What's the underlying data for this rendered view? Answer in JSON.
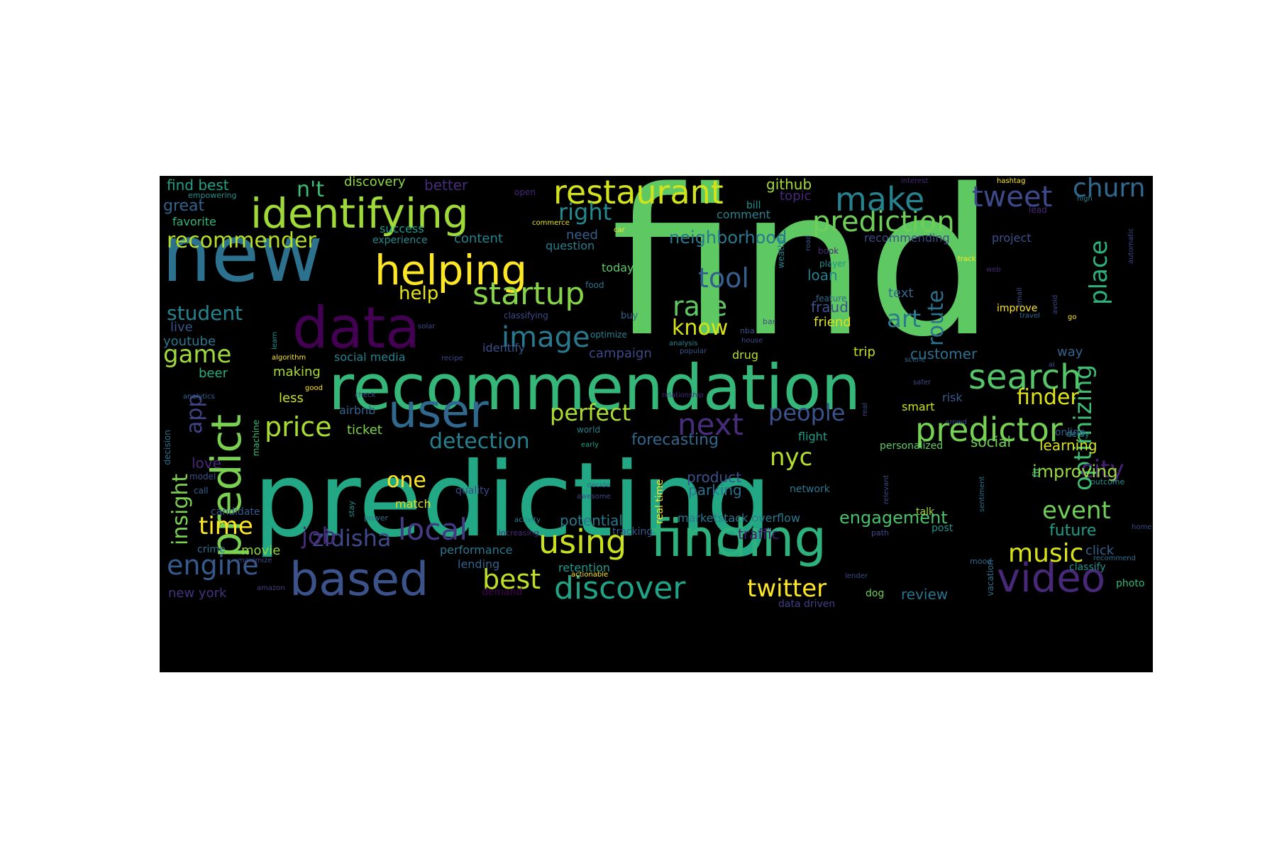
{
  "wordcloud": {
    "background": "#000000",
    "colormap": "viridis",
    "words": [
      {
        "text": "find",
        "color": "#5ec962"
      },
      {
        "text": "predicting",
        "color": "#22a884"
      },
      {
        "text": "new",
        "color": "#2c728e"
      },
      {
        "text": "recommendation",
        "color": "#35b779"
      },
      {
        "text": "data",
        "color": "#440154"
      },
      {
        "text": "finding",
        "color": "#2db27d"
      },
      {
        "text": "identifying",
        "color": "#a0da39"
      },
      {
        "text": "helping",
        "color": "#fde725"
      },
      {
        "text": "user",
        "color": "#31688e"
      },
      {
        "text": "based",
        "color": "#3b528b"
      },
      {
        "text": "predict",
        "color": "#7ad151"
      },
      {
        "text": "video",
        "color": "#482878"
      },
      {
        "text": "restaurant",
        "color": "#d2e21b"
      },
      {
        "text": "prediction",
        "color": "#6ece58"
      },
      {
        "text": "startup",
        "color": "#86d549"
      },
      {
        "text": "search",
        "color": "#54c568"
      },
      {
        "text": "predictor",
        "color": "#75d054"
      },
      {
        "text": "make",
        "color": "#26828e"
      },
      {
        "text": "tweet",
        "color": "#3e4989"
      },
      {
        "text": "discover",
        "color": "#20a386"
      },
      {
        "text": "recommender",
        "color": "#b5de2b"
      },
      {
        "text": "next",
        "color": "#472d7b"
      },
      {
        "text": "image",
        "color": "#2a788e"
      },
      {
        "text": "local",
        "color": "#443983"
      },
      {
        "text": "using",
        "color": "#cae11f"
      },
      {
        "text": "churn",
        "color": "#31688e"
      },
      {
        "text": "price",
        "color": "#a8db34"
      },
      {
        "text": "tool",
        "color": "#355f8d"
      },
      {
        "text": "rate",
        "color": "#5ec962"
      },
      {
        "text": "place",
        "color": "#2db27d"
      },
      {
        "text": "engine",
        "color": "#375a8c"
      },
      {
        "text": "music",
        "color": "#d8e219"
      },
      {
        "text": "twitter",
        "color": "#fde725"
      },
      {
        "text": "best",
        "color": "#bddf26"
      },
      {
        "text": "optimizing",
        "color": "#3fbc73"
      },
      {
        "text": "perfect",
        "color": "#addc30"
      },
      {
        "text": "zidisha",
        "color": "#3e4989"
      },
      {
        "text": "event",
        "color": "#6ece58"
      },
      {
        "text": "art",
        "color": "#287c8e"
      },
      {
        "text": "know",
        "color": "#d8e219"
      },
      {
        "text": "detection",
        "color": "#27808e"
      },
      {
        "text": "route",
        "color": "#2c728e"
      },
      {
        "text": "game",
        "color": "#9fda3a"
      },
      {
        "text": "people",
        "color": "#3b528b"
      },
      {
        "text": "city",
        "color": "#482173"
      },
      {
        "text": "time",
        "color": "#fde725"
      },
      {
        "text": "nyc",
        "color": "#b5de2b"
      },
      {
        "text": "right",
        "color": "#23898e"
      },
      {
        "text": "n't",
        "color": "#3bbb75"
      },
      {
        "text": "student",
        "color": "#25858e"
      },
      {
        "text": "job",
        "color": "#472c7a"
      },
      {
        "text": "insight",
        "color": "#7ad151"
      },
      {
        "text": "finder",
        "color": "#dde318"
      },
      {
        "text": "one",
        "color": "#fde725"
      },
      {
        "text": "help",
        "color": "#e5e419"
      },
      {
        "text": "app",
        "color": "#414487"
      },
      {
        "text": "neighborhood",
        "color": "#2a788e"
      },
      {
        "text": "improving",
        "color": "#9bd93c"
      },
      {
        "text": "engagement",
        "color": "#4ac16d"
      },
      {
        "text": "forecasting",
        "color": "#31688e"
      },
      {
        "text": "future",
        "color": "#1f9e89"
      },
      {
        "text": "great",
        "color": "#33638d"
      },
      {
        "text": "find best",
        "color": "#1fa187"
      },
      {
        "text": "github",
        "color": "#a5db36"
      },
      {
        "text": "discovery",
        "color": "#8bd646"
      },
      {
        "text": "better",
        "color": "#472d7b"
      },
      {
        "text": "learning",
        "color": "#d5e21a"
      },
      {
        "text": "customer",
        "color": "#2d708e"
      },
      {
        "text": "social",
        "color": "#6ece58"
      },
      {
        "text": "product",
        "color": "#3b528b"
      },
      {
        "text": "parking",
        "color": "#2c728e"
      },
      {
        "text": "potential",
        "color": "#2a788e"
      },
      {
        "text": "traffic",
        "color": "#481f70"
      },
      {
        "text": "movie",
        "color": "#8bd646"
      },
      {
        "text": "review",
        "color": "#2c728e"
      },
      {
        "text": "loan",
        "color": "#277f8e"
      },
      {
        "text": "fraud",
        "color": "#3b528b"
      },
      {
        "text": "friend",
        "color": "#dde318"
      },
      {
        "text": "text",
        "color": "#31688e"
      },
      {
        "text": "topic",
        "color": "#482878"
      },
      {
        "text": "comment",
        "color": "#26828e"
      },
      {
        "text": "bill",
        "color": "#21918c"
      },
      {
        "text": "project",
        "color": "#3b528b"
      },
      {
        "text": "recommending",
        "color": "#3e4989"
      },
      {
        "text": "content",
        "color": "#25848e"
      },
      {
        "text": "need",
        "color": "#355f8d"
      },
      {
        "text": "question",
        "color": "#287d8e"
      },
      {
        "text": "today",
        "color": "#5ec962"
      },
      {
        "text": "favorite",
        "color": "#35b779"
      },
      {
        "text": "success",
        "color": "#1f9a8a"
      },
      {
        "text": "experience",
        "color": "#23898e"
      },
      {
        "text": "youtube",
        "color": "#2a788e"
      },
      {
        "text": "live",
        "color": "#39568c"
      },
      {
        "text": "beer",
        "color": "#29af7f"
      },
      {
        "text": "making",
        "color": "#a8db34"
      },
      {
        "text": "social media",
        "color": "#26828e"
      },
      {
        "text": "identify",
        "color": "#3b528b"
      },
      {
        "text": "campaign",
        "color": "#3e4989"
      },
      {
        "text": "drug",
        "color": "#b8de29"
      },
      {
        "text": "trip",
        "color": "#c2df23"
      },
      {
        "text": "way",
        "color": "#33638d"
      },
      {
        "text": "airbnb",
        "color": "#33638d"
      },
      {
        "text": "less",
        "color": "#c8e020"
      },
      {
        "text": "smart",
        "color": "#cde11d"
      },
      {
        "text": "risk",
        "color": "#38598c"
      },
      {
        "text": "ticket",
        "color": "#7fd34e"
      },
      {
        "text": "flight",
        "color": "#1f9e89"
      },
      {
        "text": "love",
        "color": "#482878"
      },
      {
        "text": "match",
        "color": "#dde318"
      },
      {
        "text": "performance",
        "color": "#2a788e"
      },
      {
        "text": "retention",
        "color": "#1f9a8a"
      },
      {
        "text": "lending",
        "color": "#33638d"
      },
      {
        "text": "demand",
        "color": "#440154"
      },
      {
        "text": "candidate",
        "color": "#38598c"
      },
      {
        "text": "crime",
        "color": "#2d708e"
      },
      {
        "text": "new york",
        "color": "#46327e"
      },
      {
        "text": "click",
        "color": "#33638d"
      },
      {
        "text": "classify",
        "color": "#21918c"
      },
      {
        "text": "photo",
        "color": "#35b779"
      },
      {
        "text": "post",
        "color": "#21918c"
      },
      {
        "text": "talk",
        "color": "#a0da39"
      },
      {
        "text": "online",
        "color": "#38598c"
      },
      {
        "text": "personalized",
        "color": "#5ec962"
      },
      {
        "text": "marketstack overflow",
        "color": "#2a788e"
      },
      {
        "text": "real time",
        "color": "#fde725"
      },
      {
        "text": "data driven",
        "color": "#433e85"
      },
      {
        "text": "dog",
        "color": "#6ece58"
      },
      {
        "text": "tracking",
        "color": "#38598c"
      },
      {
        "text": "network",
        "color": "#2a788e"
      },
      {
        "text": "quality",
        "color": "#3e4989"
      },
      {
        "text": "improve",
        "color": "#fde725"
      },
      {
        "text": "empowering",
        "color": "#21918c"
      },
      {
        "text": "open",
        "color": "#482878"
      },
      {
        "text": "commerce",
        "color": "#e5e419"
      },
      {
        "text": "car",
        "color": "#fde725"
      },
      {
        "text": "food",
        "color": "#2c728e"
      },
      {
        "text": "classifying",
        "color": "#3e4989"
      },
      {
        "text": "buy",
        "color": "#31688e"
      },
      {
        "text": "optimize",
        "color": "#26828e"
      },
      {
        "text": "analysis",
        "color": "#26828e"
      },
      {
        "text": "popular",
        "color": "#3b528b"
      },
      {
        "text": "algorithm",
        "color": "#fde725"
      },
      {
        "text": "recipe",
        "color": "#3e4989"
      },
      {
        "text": "good",
        "color": "#fde725"
      },
      {
        "text": "analytics",
        "color": "#33638d"
      },
      {
        "text": "check",
        "color": "#3e4989"
      },
      {
        "text": "machine",
        "color": "#3bbb75"
      },
      {
        "text": "decision",
        "color": "#2c728e"
      },
      {
        "text": "relationship",
        "color": "#482878"
      },
      {
        "text": "world",
        "color": "#26828e"
      },
      {
        "text": "early",
        "color": "#1f9e89"
      },
      {
        "text": "decide",
        "color": "#31688e"
      },
      {
        "text": "awesome",
        "color": "#3e4989"
      },
      {
        "text": "model",
        "color": "#3b528b"
      },
      {
        "text": "call",
        "color": "#33638d"
      },
      {
        "text": "stay",
        "color": "#21918c"
      },
      {
        "text": "power",
        "color": "#2c728e"
      },
      {
        "text": "activity",
        "color": "#26828e"
      },
      {
        "text": "increasing",
        "color": "#482878"
      },
      {
        "text": "actionable",
        "color": "#fde725"
      },
      {
        "text": "maximize",
        "color": "#3e4989"
      },
      {
        "text": "amazon",
        "color": "#433e85"
      },
      {
        "text": "path",
        "color": "#3e4989"
      },
      {
        "text": "lender",
        "color": "#3e4989"
      },
      {
        "text": "mood",
        "color": "#31688e"
      },
      {
        "text": "vacation",
        "color": "#2c728e"
      },
      {
        "text": "recommend",
        "color": "#2d708e"
      },
      {
        "text": "home",
        "color": "#3e4989"
      },
      {
        "text": "outcome",
        "color": "#21918c"
      },
      {
        "text": "fit",
        "color": "#35b779"
      },
      {
        "text": "sentiment",
        "color": "#2c728e"
      },
      {
        "text": "relevant",
        "color": "#3e4989"
      },
      {
        "text": "interest",
        "color": "#482878"
      },
      {
        "text": "hashtag",
        "color": "#fde725"
      },
      {
        "text": "high",
        "color": "#26828e"
      },
      {
        "text": "lead",
        "color": "#482878"
      },
      {
        "text": "automatic",
        "color": "#3e4989"
      },
      {
        "text": "weather",
        "color": "#26828e"
      },
      {
        "text": "road",
        "color": "#3b528b"
      },
      {
        "text": "book",
        "color": "#482878"
      },
      {
        "text": "player",
        "color": "#21918c"
      },
      {
        "text": "track",
        "color": "#fde725"
      },
      {
        "text": "web",
        "color": "#482878"
      },
      {
        "text": "feature",
        "color": "#31688e"
      },
      {
        "text": "email",
        "color": "#3b528b"
      },
      {
        "text": "travel",
        "color": "#31688e"
      },
      {
        "text": "avoid",
        "color": "#3e4989"
      },
      {
        "text": "go",
        "color": "#fde725"
      },
      {
        "text": "bar",
        "color": "#3e4989"
      },
      {
        "text": "nba",
        "color": "#3b528b"
      },
      {
        "text": "house",
        "color": "#3e4989"
      },
      {
        "text": "scene",
        "color": "#31688e"
      },
      {
        "text": "safer",
        "color": "#3e4989"
      },
      {
        "text": "ai",
        "color": "#3b528b"
      },
      {
        "text": "real",
        "color": "#3e4989"
      },
      {
        "text": "crowd",
        "color": "#3e4989"
      },
      {
        "text": "delay",
        "color": "#26828e"
      },
      {
        "text": "learn",
        "color": "#21918c"
      },
      {
        "text": "solar",
        "color": "#3e4989"
      }
    ]
  }
}
